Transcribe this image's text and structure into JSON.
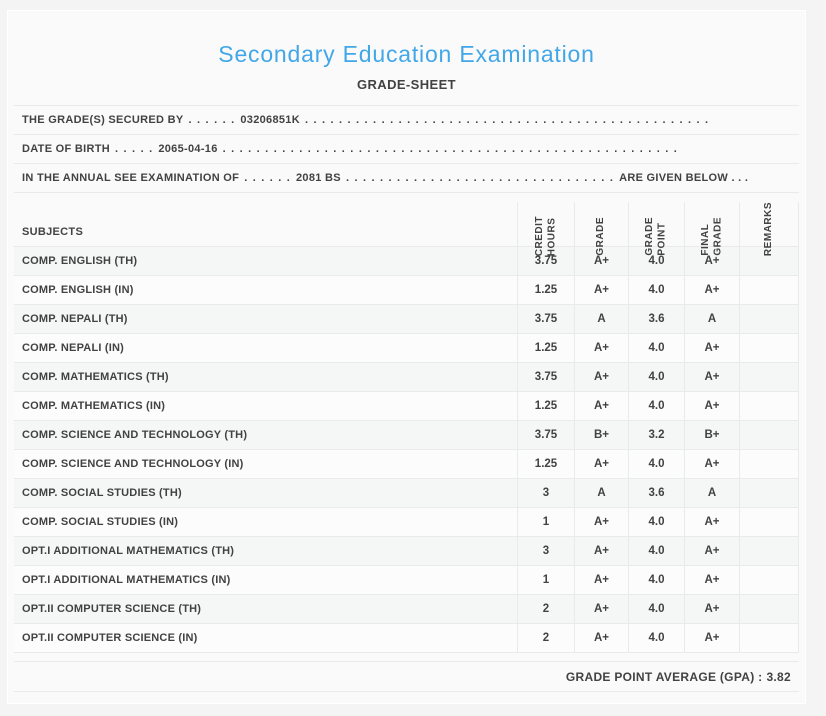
{
  "page": {
    "title": "Secondary Education Examination",
    "subtitle": "GRADE-SHEET"
  },
  "statement_lines": [
    {
      "label": "THE GRADE(S) SECURED BY",
      "dots_before": ". . . . . .",
      "value": "03206851K",
      "dots_after": ". . . . . . . . . . . . . . . . . . . . . . . . . . . . . . . . . . . . . . . . . . . . . . . ."
    },
    {
      "label": "DATE OF BIRTH",
      "dots_before": ". . . . .",
      "value": "2065-04-16",
      "dots_after": ". . . . . . . . . . . . . . . . . . . . . . . . . . . . . . . . . . . . . . . . . . . . . . . . . . . . . ."
    },
    {
      "label": "IN THE ANNUAL SEE EXAMINATION OF",
      "dots_before": ". . . . . .",
      "value": "2081 BS",
      "dots_after": ". . . . . . . . . . . . . . . . . . . . . . . . . . . . . . . .",
      "suffix": "ARE GIVEN BELOW . . ."
    }
  ],
  "table": {
    "columns": [
      {
        "id": "subjects",
        "label": "SUBJECTS"
      },
      {
        "id": "credit_hours",
        "label": "CREDIT\nHOURS"
      },
      {
        "id": "grade",
        "label": "GRADE"
      },
      {
        "id": "grade_point",
        "label": "GRADE\nPOINT"
      },
      {
        "id": "final_grade",
        "label": "FINAL\nGRADE"
      },
      {
        "id": "remarks",
        "label": "REMARKS"
      }
    ],
    "rows": [
      {
        "subject": "COMP. ENGLISH (TH)",
        "credit_hours": "3.75",
        "grade": "A+",
        "grade_point": "4.0",
        "final_grade": "A+",
        "remarks": ""
      },
      {
        "subject": "COMP. ENGLISH (IN)",
        "credit_hours": "1.25",
        "grade": "A+",
        "grade_point": "4.0",
        "final_grade": "A+",
        "remarks": ""
      },
      {
        "subject": "COMP. NEPALI (TH)",
        "credit_hours": "3.75",
        "grade": "A",
        "grade_point": "3.6",
        "final_grade": "A",
        "remarks": ""
      },
      {
        "subject": "COMP. NEPALI (IN)",
        "credit_hours": "1.25",
        "grade": "A+",
        "grade_point": "4.0",
        "final_grade": "A+",
        "remarks": ""
      },
      {
        "subject": "COMP. MATHEMATICS (TH)",
        "credit_hours": "3.75",
        "grade": "A+",
        "grade_point": "4.0",
        "final_grade": "A+",
        "remarks": ""
      },
      {
        "subject": "COMP. MATHEMATICS (IN)",
        "credit_hours": "1.25",
        "grade": "A+",
        "grade_point": "4.0",
        "final_grade": "A+",
        "remarks": ""
      },
      {
        "subject": "COMP. SCIENCE AND TECHNOLOGY (TH)",
        "credit_hours": "3.75",
        "grade": "B+",
        "grade_point": "3.2",
        "final_grade": "B+",
        "remarks": ""
      },
      {
        "subject": "COMP. SCIENCE AND TECHNOLOGY (IN)",
        "credit_hours": "1.25",
        "grade": "A+",
        "grade_point": "4.0",
        "final_grade": "A+",
        "remarks": ""
      },
      {
        "subject": "COMP. SOCIAL STUDIES (TH)",
        "credit_hours": "3",
        "grade": "A",
        "grade_point": "3.6",
        "final_grade": "A",
        "remarks": ""
      },
      {
        "subject": "COMP. SOCIAL STUDIES (IN)",
        "credit_hours": "1",
        "grade": "A+",
        "grade_point": "4.0",
        "final_grade": "A+",
        "remarks": ""
      },
      {
        "subject": "OPT.I ADDITIONAL MATHEMATICS (TH)",
        "credit_hours": "3",
        "grade": "A+",
        "grade_point": "4.0",
        "final_grade": "A+",
        "remarks": ""
      },
      {
        "subject": "OPT.I ADDITIONAL MATHEMATICS (IN)",
        "credit_hours": "1",
        "grade": "A+",
        "grade_point": "4.0",
        "final_grade": "A+",
        "remarks": ""
      },
      {
        "subject": "OPT.II COMPUTER SCIENCE (TH)",
        "credit_hours": "2",
        "grade": "A+",
        "grade_point": "4.0",
        "final_grade": "A+",
        "remarks": ""
      },
      {
        "subject": "OPT.II COMPUTER SCIENCE (IN)",
        "credit_hours": "2",
        "grade": "A+",
        "grade_point": "4.0",
        "final_grade": "A+",
        "remarks": ""
      }
    ]
  },
  "footer": {
    "gpa_label": "GRADE POINT AVERAGE (GPA) :",
    "gpa_value": "3.82"
  },
  "colors": {
    "title_blue": "#41a7e8",
    "text": "#424242",
    "page_bg": "#f4f4f4",
    "card_bg": "#fafafa",
    "border": "#e9eaea",
    "row_odd": "#f5f6f6",
    "row_even": "#fcfcfc"
  }
}
